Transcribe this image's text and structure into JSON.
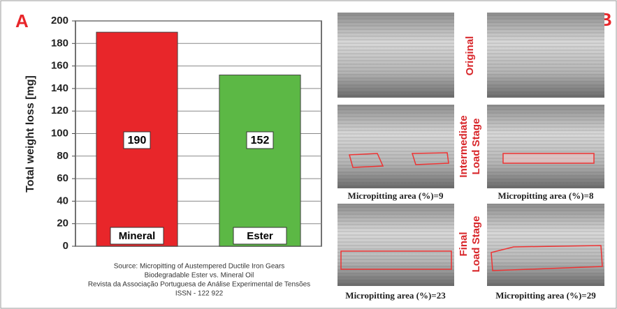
{
  "chart_data": {
    "type": "bar",
    "ylabel": "Total weight loss [mg]",
    "categories": [
      "Mineral",
      "Ester"
    ],
    "values": [
      190,
      152
    ],
    "colors": [
      "#e8262a",
      "#5cb845"
    ],
    "ylim": [
      0,
      200
    ],
    "yticks": [
      0,
      20,
      40,
      60,
      80,
      100,
      120,
      140,
      160,
      180,
      200
    ],
    "grid": true
  },
  "panel_a": {
    "label": "A",
    "source": [
      "Source: Micropitting of Austempered Ductile Iron Gears",
      "Biodegradable Ester vs. Mineral Oil",
      "Revista da Associação Portuguesa de Análise Experimental de Tensões",
      "ISSN - 122 922"
    ]
  },
  "panel_b": {
    "label": "B",
    "row_labels": [
      [
        "Original"
      ],
      [
        "Intermediate",
        "Load Stage"
      ],
      [
        "Final",
        "Load Stage"
      ]
    ],
    "captions": [
      [
        "Micropitting area (%)=9",
        "Micropitting area (%)=8"
      ],
      [
        "Micropitting area (%)=23",
        "Micropitting area (%)=29"
      ]
    ]
  }
}
